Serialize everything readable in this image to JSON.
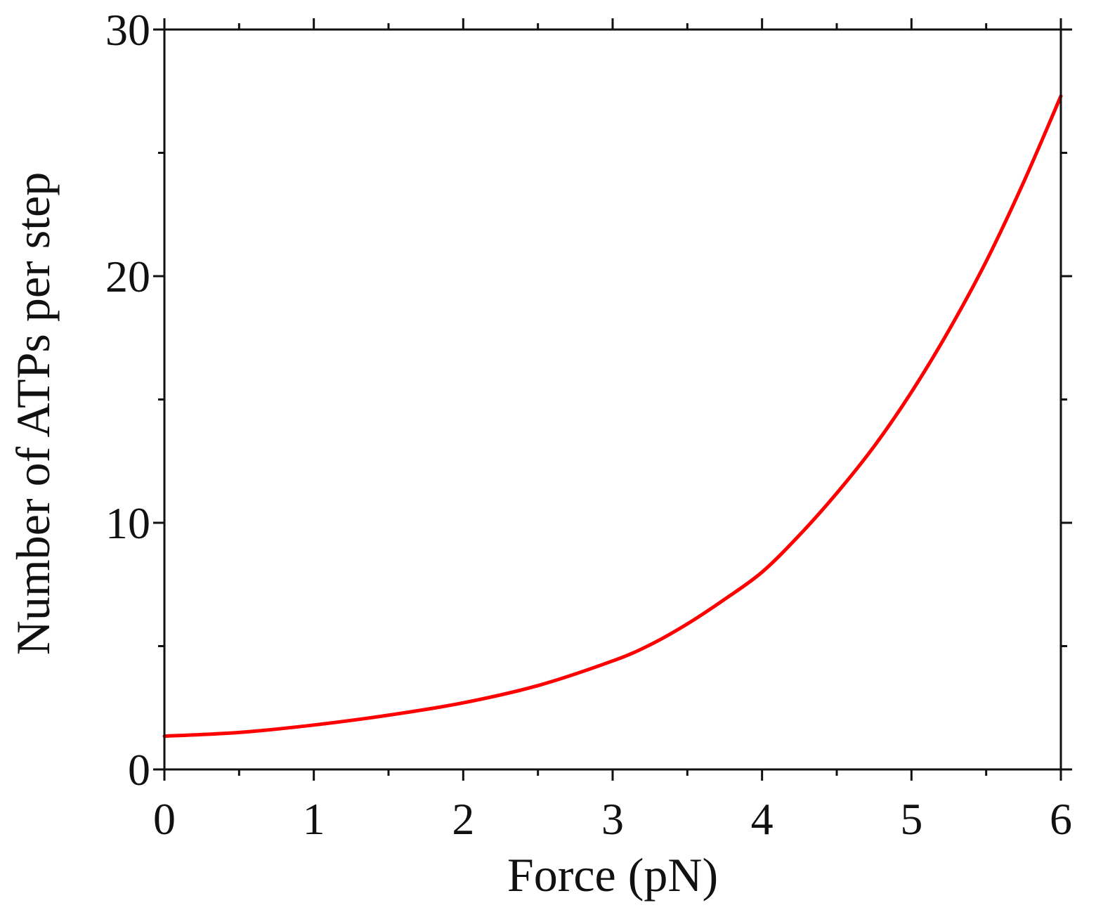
{
  "chart_data": {
    "type": "line",
    "title": "",
    "xlabel": "Force (pN)",
    "ylabel": "Number of ATPs per step",
    "xlim": [
      0,
      6
    ],
    "ylim": [
      0,
      30
    ],
    "x_ticks": [
      0,
      1,
      2,
      3,
      4,
      5,
      6
    ],
    "x_tick_labels": [
      "0",
      "1",
      "2",
      "3",
      "4",
      "5",
      "6"
    ],
    "x_minor_ticks": [
      0.5,
      1.5,
      2.5,
      3.5,
      4.5,
      5.5
    ],
    "y_ticks": [
      0,
      10,
      20,
      30
    ],
    "y_tick_labels": [
      "0",
      "10",
      "20",
      "30"
    ],
    "y_minor_ticks": [
      5,
      15,
      25
    ],
    "grid": false,
    "legend": "none",
    "series": [
      {
        "color": "#ff0000",
        "x": [
          0,
          0.5,
          1,
          1.5,
          2,
          2.5,
          3,
          3.25,
          3.5,
          3.75,
          4,
          4.25,
          4.5,
          4.75,
          5,
          5.25,
          5.5,
          5.75,
          6
        ],
        "y": [
          1.35,
          1.5,
          1.8,
          2.2,
          2.7,
          3.4,
          4.4,
          5.05,
          5.9,
          6.9,
          8.0,
          9.5,
          11.2,
          13.1,
          15.3,
          17.8,
          20.6,
          23.8,
          27.3
        ]
      }
    ]
  }
}
